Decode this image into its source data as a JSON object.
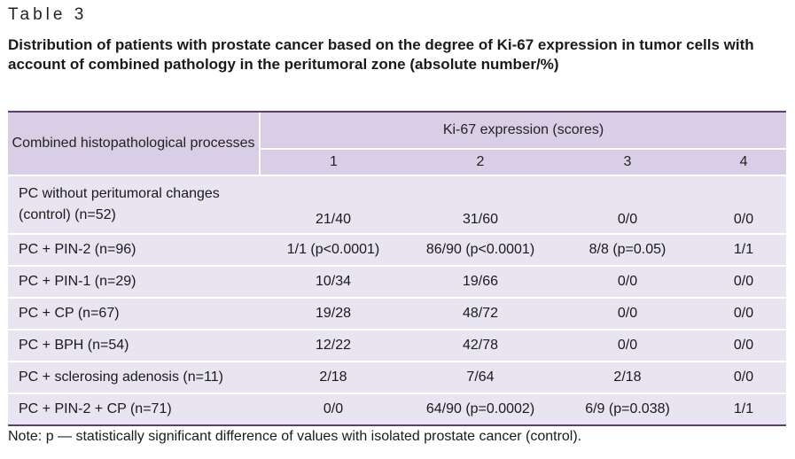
{
  "table_label": "Table 3",
  "caption": "Distribution of patients with prostate cancer based on the degree of Ki-67 expression in tumor cells with account of combined pathology in the peritumoral zone (absolute number/%)",
  "header": {
    "process_col": "Combined histopathological processes",
    "group": "Ki-67 expression (scores)",
    "scores": [
      "1",
      "2",
      "3",
      "4"
    ]
  },
  "rows": [
    {
      "label_line1": "PC without peritumoral changes",
      "label_line2": "(control) (n=52)",
      "values": [
        "21/40",
        "31/60",
        "0/0",
        "0/0"
      ]
    },
    {
      "label": "PC + PIN-2 (n=96)",
      "values": [
        "1/1 (p<0.0001)",
        "86/90 (p<0.0001)",
        "8/8 (p=0.05)",
        "1/1"
      ]
    },
    {
      "label": "PC + PIN-1 (n=29)",
      "values": [
        "10/34",
        "19/66",
        "0/0",
        "0/0"
      ]
    },
    {
      "label": "PC + CP (n=67)",
      "values": [
        "19/28",
        "48/72",
        "0/0",
        "0/0"
      ]
    },
    {
      "label": "PC + BPH (n=54)",
      "values": [
        "12/22",
        "42/78",
        "0/0",
        "0/0"
      ]
    },
    {
      "label": "PC + sclerosing adenosis (n=11)",
      "values": [
        "2/18",
        "7/64",
        "2/18",
        "0/0"
      ]
    },
    {
      "label": "PC + PIN-2 + CP (n=71)",
      "values": [
        "0/0",
        "64/90 (p=0.0002)",
        "6/9 (p=0.038)",
        "1/1"
      ]
    }
  ],
  "note": "Note: p — statistically significant difference of values with isolated prostate cancer (control).",
  "colors": {
    "header_bg": "#d8cfe6",
    "row_bg": "#e9e4f1",
    "rule": "#5e3d73"
  }
}
